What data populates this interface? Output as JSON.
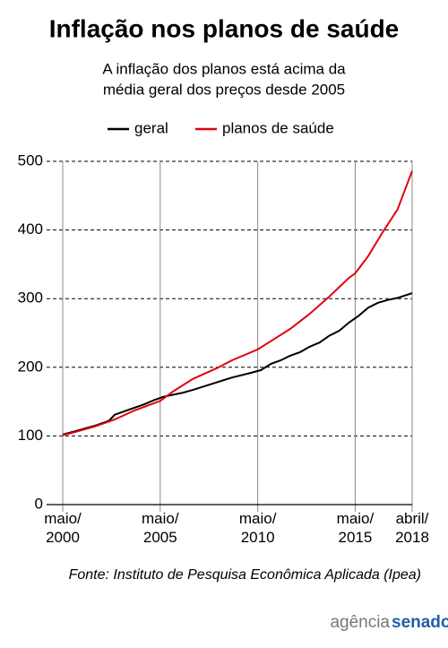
{
  "chart_data": {
    "type": "line",
    "title": "Inflação nos planos de saúde",
    "subtitle": [
      "A inflação dos planos está acima da",
      "média geral dos preços desde 2005"
    ],
    "xlim": [
      2000.33,
      2018.25
    ],
    "xticks": [
      {
        "value": 2000.33,
        "label": "maio/\n2000"
      },
      {
        "value": 2005.33,
        "label": "maio/\n2005"
      },
      {
        "value": 2010.33,
        "label": "maio/\n2010"
      },
      {
        "value": 2015.33,
        "label": "maio/\n2015"
      },
      {
        "value": 2018.25,
        "label": "abril/\n2018"
      }
    ],
    "ylim": [
      0,
      500
    ],
    "yticks": [
      0,
      100,
      200,
      300,
      400,
      500
    ],
    "grid": true,
    "series": [
      {
        "name": "geral",
        "color": "#000000",
        "x": [
          2000.33,
          2001,
          2002,
          2002.7,
          2003,
          2003.5,
          2004,
          2004.5,
          2005,
          2005.5,
          2006,
          2006.5,
          2007,
          2008,
          2009,
          2010,
          2010.5,
          2011,
          2011.5,
          2012,
          2012.5,
          2013,
          2013.5,
          2014,
          2014.5,
          2015,
          2015.5,
          2016,
          2016.5,
          2017,
          2017.5,
          2018.25
        ],
        "values": [
          102,
          107,
          115,
          122,
          131,
          136,
          141,
          146,
          152,
          157,
          160,
          163,
          167,
          176,
          185,
          192,
          196,
          205,
          210,
          217,
          222,
          230,
          236,
          246,
          253,
          265,
          275,
          287,
          294,
          298,
          301,
          308
        ]
      },
      {
        "name": "planos de saúde",
        "color": "#e3000f",
        "x": [
          2000.33,
          2001,
          2002,
          2003,
          2004,
          2005.33,
          2006,
          2007,
          2008.33,
          2009,
          2010.33,
          2011,
          2012,
          2013,
          2014,
          2015,
          2015.33,
          2016,
          2016.7,
          2017.5,
          2018.25
        ],
        "values": [
          101,
          106,
          114,
          124,
          137,
          151,
          165,
          183,
          200,
          210,
          226,
          238,
          256,
          278,
          303,
          330,
          337,
          362,
          395,
          430,
          486
        ]
      }
    ],
    "source": "Fonte: Instituto de Pesquisa Econômica Aplicada (Ipea)",
    "logo": [
      "agência",
      "senado"
    ]
  }
}
